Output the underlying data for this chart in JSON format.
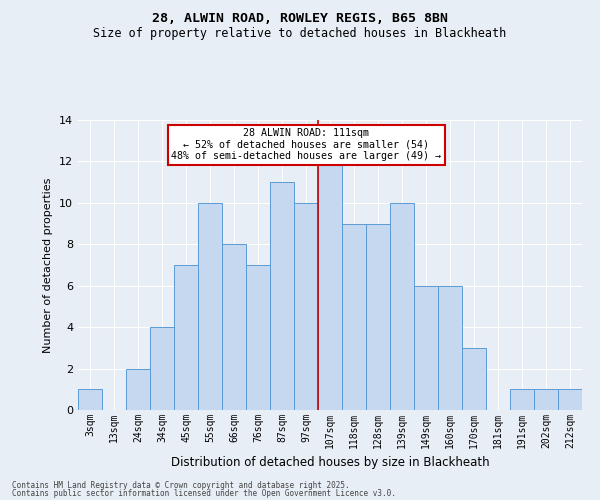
{
  "title1": "28, ALWIN ROAD, ROWLEY REGIS, B65 8BN",
  "title2": "Size of property relative to detached houses in Blackheath",
  "xlabel": "Distribution of detached houses by size in Blackheath",
  "ylabel": "Number of detached properties",
  "categories": [
    "3sqm",
    "13sqm",
    "24sqm",
    "34sqm",
    "45sqm",
    "55sqm",
    "66sqm",
    "76sqm",
    "87sqm",
    "97sqm",
    "107sqm",
    "118sqm",
    "128sqm",
    "139sqm",
    "149sqm",
    "160sqm",
    "170sqm",
    "181sqm",
    "191sqm",
    "202sqm",
    "212sqm"
  ],
  "values": [
    1,
    0,
    2,
    4,
    7,
    10,
    8,
    7,
    11,
    10,
    12,
    9,
    9,
    10,
    6,
    6,
    3,
    0,
    1,
    1,
    1
  ],
  "bar_color": "#c5d8ef",
  "bar_edge_color": "#5b9bd5",
  "annotation_title": "28 ALWIN ROAD: 111sqm",
  "annotation_line1": "← 52% of detached houses are smaller (54)",
  "annotation_line2": "48% of semi-detached houses are larger (49) →",
  "annotation_box_color": "#ffffff",
  "annotation_box_edge_color": "#cc0000",
  "vline_color": "#cc0000",
  "vline_x": 9.5,
  "ylim": [
    0,
    14
  ],
  "yticks": [
    0,
    2,
    4,
    6,
    8,
    10,
    12,
    14
  ],
  "footer1": "Contains HM Land Registry data © Crown copyright and database right 2025.",
  "footer2": "Contains public sector information licensed under the Open Government Licence v3.0.",
  "bg_color": "#e8eef5"
}
